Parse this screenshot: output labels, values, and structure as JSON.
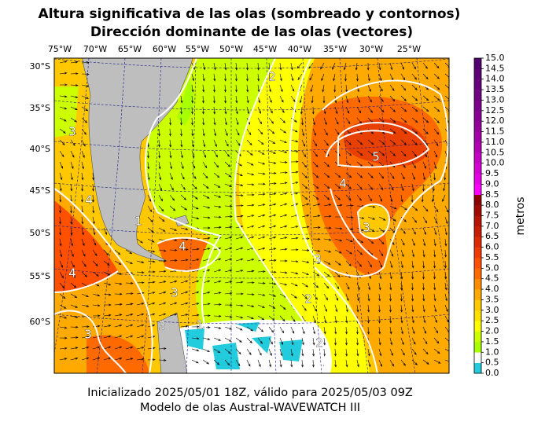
{
  "header": {
    "title_line1": "Altura significativa de las olas (sombreado y contornos)",
    "title_line2": "Dirección dominante de las olas (vectores)"
  },
  "map": {
    "longitude_labels": [
      "75°W",
      "70°W",
      "65°W",
      "60°W",
      "55°W",
      "50°W",
      "45°W",
      "40°W",
      "35°W",
      "30°W",
      "25°W"
    ],
    "latitude_labels": [
      "30°S",
      "35°S",
      "40°S",
      "45°S",
      "50°S",
      "55°S",
      "60°S"
    ],
    "contour_labels": [
      "2",
      "3",
      "4",
      "5",
      "3",
      "4",
      "3",
      "2",
      "4",
      "1",
      "3",
      "2",
      "1",
      "4",
      "3",
      "3"
    ]
  },
  "colorbar": {
    "label": "metros",
    "lim": [
      0,
      15
    ],
    "colors": [
      "#22ccdd",
      "#ffffff",
      "#a8ff00",
      "#ccff00",
      "#ffff00",
      "#ffe000",
      "#ffc800",
      "#ffaa00",
      "#ff8c00",
      "#ff6a00",
      "#ff5000",
      "#f03a00",
      "#dd2a00",
      "#c81e00",
      "#b41400",
      "#a00a00",
      "#8c0000",
      "#ff00ff",
      "#e600e6",
      "#d400d4",
      "#c400c4",
      "#b400b4",
      "#a400a8",
      "#94009c",
      "#880094",
      "#7c008c",
      "#700084",
      "#66007c",
      "#5c0076",
      "#520070"
    ],
    "ticks": [
      {
        "value": 0,
        "label": "0.0"
      },
      {
        "value": 0.5,
        "label": "0.5"
      },
      {
        "value": 1,
        "label": "1.0"
      },
      {
        "value": 1.5,
        "label": "1.5"
      },
      {
        "value": 2,
        "label": "2.0"
      },
      {
        "value": 2.5,
        "label": "2.5"
      },
      {
        "value": 3,
        "label": "3.0"
      },
      {
        "value": 3.5,
        "label": "3.5"
      },
      {
        "value": 4,
        "label": "4.0"
      },
      {
        "value": 4.5,
        "label": "4.5"
      },
      {
        "value": 5,
        "label": "5.0"
      },
      {
        "value": 5.5,
        "label": "5.5"
      },
      {
        "value": 6,
        "label": "6.0"
      },
      {
        "value": 6.5,
        "label": "6.5"
      },
      {
        "value": 7,
        "label": "7.0"
      },
      {
        "value": 7.5,
        "label": "7.5"
      },
      {
        "value": 8,
        "label": "8.0"
      },
      {
        "value": 8.5,
        "label": "8.5"
      },
      {
        "value": 9,
        "label": "9.0"
      },
      {
        "value": 9.5,
        "label": "9.5"
      },
      {
        "value": 10,
        "label": "10.0"
      },
      {
        "value": 10.5,
        "label": "10.5"
      },
      {
        "value": 11,
        "label": "11.0"
      },
      {
        "value": 11.5,
        "label": "11.5"
      },
      {
        "value": 12,
        "label": "12.0"
      },
      {
        "value": 12.5,
        "label": "12.5"
      },
      {
        "value": 13,
        "label": "13.0"
      },
      {
        "value": 13.5,
        "label": "13.5"
      },
      {
        "value": 14,
        "label": "14.0"
      },
      {
        "value": 14.5,
        "label": "14.5"
      },
      {
        "value": 15,
        "label": "15.0"
      }
    ]
  },
  "footer": {
    "line1": "Inicializado 2025/05/01 18Z, válido para 2025/05/03 09Z",
    "line2": "Modelo de olas Austral-WAVEWATCH III"
  }
}
